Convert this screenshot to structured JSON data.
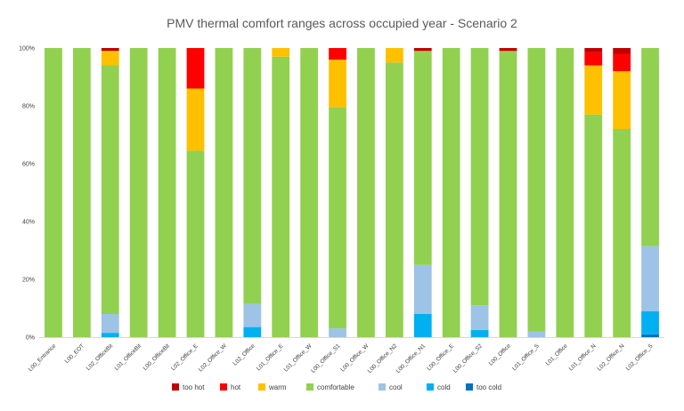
{
  "chart_data": {
    "type": "bar",
    "stacked": true,
    "title": "PMV thermal comfort ranges across occupied year - Scenario 2",
    "xlabel": "",
    "ylabel": "",
    "ylim": [
      0,
      100
    ],
    "yticks": [
      "0%",
      "20%",
      "40%",
      "60%",
      "80%",
      "100%"
    ],
    "grid": false,
    "legend_position": "bottom",
    "categories": [
      "L00_Entrance",
      "L00_EOT",
      "L02_OfficeBit",
      "L01_OfficeBit",
      "L00_OfficeBit",
      "L02_Office_E",
      "L02_Office_W",
      "L02_Office",
      "L01_Office_E",
      "L01_Office_W",
      "L00_Office_S1",
      "L00_Office_W",
      "L00_Office_N2",
      "L00_Office_N1",
      "L00_Office_E",
      "L00_Office_S2",
      "L00_Office",
      "L01_Office_S",
      "L01_Office",
      "L01_Office_N",
      "L02_Office_N",
      "L02_Office_S"
    ],
    "series": [
      {
        "name": "too cold",
        "color": "#0070C0",
        "values": [
          0,
          0,
          0,
          0,
          0,
          0,
          0,
          0,
          0,
          0,
          0,
          0,
          0,
          0,
          0,
          0,
          0,
          0,
          0,
          0,
          0,
          1
        ]
      },
      {
        "name": "cold",
        "color": "#00B0F0",
        "values": [
          0,
          0,
          1.5,
          0,
          0,
          0,
          0,
          3.5,
          0,
          0,
          0,
          0,
          0,
          8,
          0,
          2.5,
          0,
          0,
          0,
          0,
          0,
          8
        ]
      },
      {
        "name": "cool",
        "color": "#9DC3E6",
        "values": [
          0,
          0,
          6.5,
          0,
          0,
          0,
          0,
          8,
          0,
          0,
          3,
          0,
          0,
          17,
          0,
          8.5,
          0,
          2,
          0,
          0,
          0,
          22.5
        ]
      },
      {
        "name": "comfortable",
        "color": "#92D050",
        "values": [
          100,
          100,
          86,
          100,
          100,
          64.5,
          100,
          88.5,
          97,
          100,
          76.5,
          100,
          95,
          74,
          100,
          89,
          99,
          98,
          100,
          77,
          72,
          68.5
        ]
      },
      {
        "name": "warm",
        "color": "#FFC000",
        "values": [
          0,
          0,
          5,
          0,
          0,
          21.5,
          0,
          0,
          3,
          0,
          16.5,
          0,
          5,
          0,
          0,
          0,
          0,
          0,
          0,
          17,
          20,
          0
        ]
      },
      {
        "name": "hot",
        "color": "#FF0000",
        "values": [
          0,
          0,
          0,
          0,
          0,
          14,
          0,
          0,
          0,
          0,
          4,
          0,
          0,
          0,
          0,
          0,
          0,
          0,
          0,
          4.5,
          6,
          0
        ]
      },
      {
        "name": "too hot",
        "color": "#C00000",
        "values": [
          0,
          0,
          1,
          0,
          0,
          0,
          0,
          0,
          0,
          0,
          0,
          0,
          0,
          1,
          0,
          0,
          1,
          0,
          0,
          1.5,
          2,
          0
        ]
      }
    ],
    "legend_order": [
      "too hot",
      "hot",
      "warm",
      "comfortable",
      "cool",
      "cold",
      "too cold"
    ]
  }
}
